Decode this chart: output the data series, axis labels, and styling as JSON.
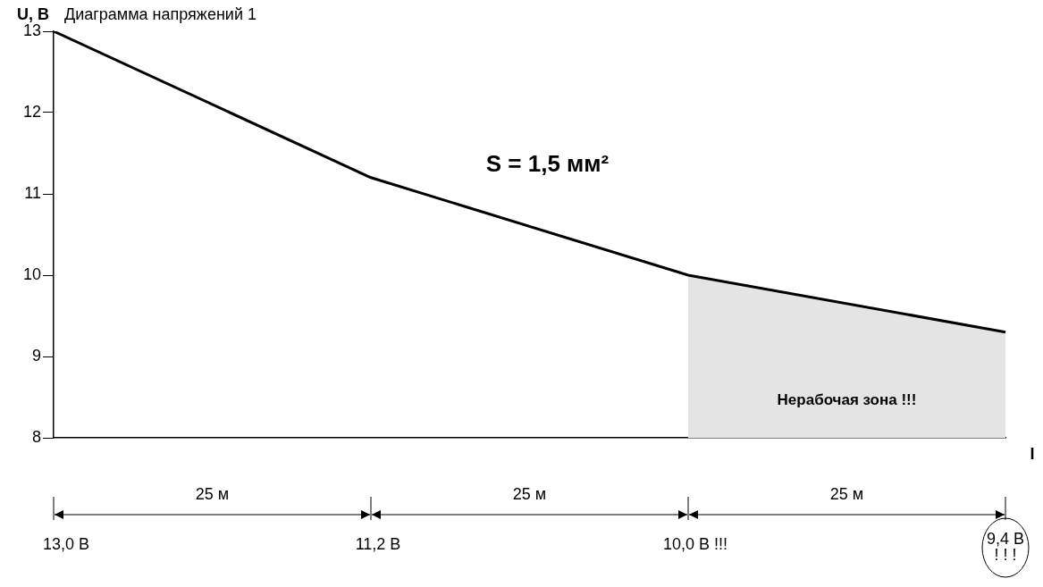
{
  "chart_data": {
    "type": "line",
    "title": "Диаграмма напряжений 1",
    "ylabel": "U, В",
    "xlabel": "I",
    "categories": [
      null,
      null,
      null,
      null
    ],
    "series": [
      {
        "type": "area",
        "name": "Нерабочая зона !!!",
        "color": "#e4e4e4",
        "values": [
          null,
          null,
          10,
          9.3
        ]
      },
      {
        "color": "#000000",
        "values": [
          13,
          11.2,
          10,
          9.3
        ]
      }
    ],
    "ylim": [
      8,
      13
    ],
    "yticks": [
      8,
      9,
      10,
      11,
      12,
      13
    ],
    "tick_labels": "y",
    "grid": false,
    "legend": false,
    "marker": "none",
    "line_style": "solid",
    "annotations": [
      "S = 1,5 мм²",
      "25 м",
      "25 м",
      "25 м",
      "13,0 В",
      "11,2 В",
      "10,0 В !!!",
      "9,4 В\n! ! !"
    ]
  }
}
